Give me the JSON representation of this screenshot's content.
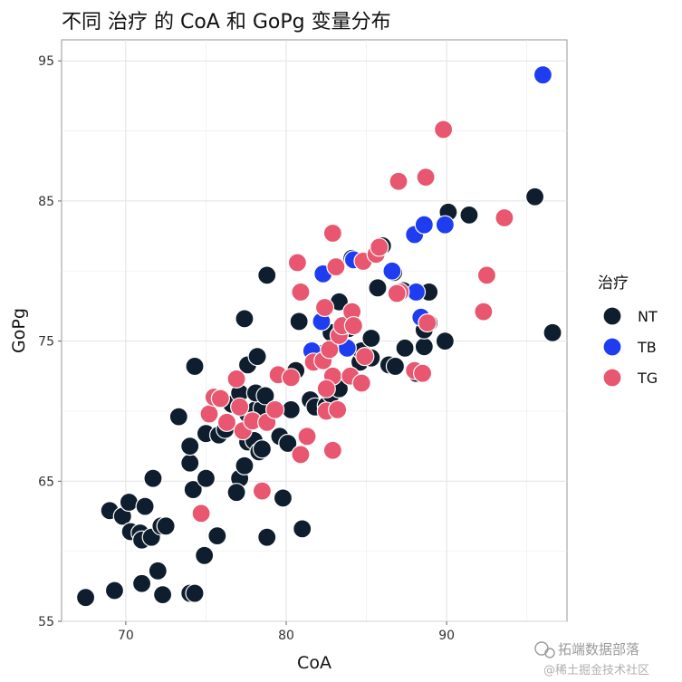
{
  "chart_data": {
    "type": "scatter",
    "title": "不同 治疗 的 CoA 和 GoPg 变量分布",
    "xlabel": "CoA",
    "ylabel": "GoPg",
    "xlim": [
      66,
      97.5
    ],
    "ylim": [
      55,
      96.5
    ],
    "x_ticks": [
      70,
      80,
      90
    ],
    "y_ticks": [
      55,
      65,
      75,
      85,
      95
    ],
    "grid": true,
    "legend_title": "治疗",
    "legend_position": "right",
    "series": [
      {
        "name": "NT",
        "color": "#0f1e2e",
        "points": [
          [
            67.5,
            56.7
          ],
          [
            69.3,
            57.2
          ],
          [
            71,
            57.7
          ],
          [
            72,
            58.6
          ],
          [
            72.3,
            56.9
          ],
          [
            74,
            57
          ],
          [
            74.3,
            57
          ],
          [
            74.9,
            59.7
          ],
          [
            75.7,
            61.1
          ],
          [
            78.8,
            61
          ],
          [
            81,
            61.6
          ],
          [
            69,
            62.9
          ],
          [
            69.8,
            62.5
          ],
          [
            70.3,
            61.4
          ],
          [
            70.2,
            63.5
          ],
          [
            70.9,
            61.3
          ],
          [
            71,
            60.8
          ],
          [
            71.2,
            63.2
          ],
          [
            71.6,
            61
          ],
          [
            72.2,
            61.8
          ],
          [
            71.7,
            65.2
          ],
          [
            72.5,
            61.8
          ],
          [
            74.2,
            64.4
          ],
          [
            74,
            66.3
          ],
          [
            75,
            65.2
          ],
          [
            77.1,
            65.2
          ],
          [
            77.4,
            66.1
          ],
          [
            76.9,
            64.2
          ],
          [
            79.8,
            63.8
          ],
          [
            73.3,
            69.6
          ],
          [
            74,
            67.5
          ],
          [
            75,
            68.4
          ],
          [
            75.8,
            68.3
          ],
          [
            76.2,
            68.7
          ],
          [
            77.6,
            67.8
          ],
          [
            78,
            67.9
          ],
          [
            78.3,
            67.1
          ],
          [
            79.6,
            68.2
          ],
          [
            80.1,
            67.7
          ],
          [
            78.5,
            67.3
          ],
          [
            74.3,
            73.2
          ],
          [
            76.6,
            70.5
          ],
          [
            77.1,
            71.3
          ],
          [
            77.6,
            69.8
          ],
          [
            78.1,
            70.1
          ],
          [
            78.5,
            70.2
          ],
          [
            77.6,
            73.3
          ],
          [
            78.2,
            73.9
          ],
          [
            78.1,
            71.3
          ],
          [
            78.7,
            71.1
          ],
          [
            80.3,
            70.1
          ],
          [
            81.5,
            70.8
          ],
          [
            81.8,
            70.3
          ],
          [
            82.5,
            70.4
          ],
          [
            82.8,
            71.2
          ],
          [
            83.3,
            71.6
          ],
          [
            80.6,
            72.9
          ],
          [
            82.1,
            74.1
          ],
          [
            83.5,
            74.7
          ],
          [
            84.6,
            73.5
          ],
          [
            85.3,
            73.8
          ],
          [
            86.4,
            73.3
          ],
          [
            86.8,
            73.2
          ],
          [
            82.8,
            75.6
          ],
          [
            83.9,
            75.9
          ],
          [
            84.7,
            74.3
          ],
          [
            85.3,
            75.2
          ],
          [
            87.4,
            74.5
          ],
          [
            88.6,
            74.6
          ],
          [
            89.9,
            75
          ],
          [
            88.9,
            76.3
          ],
          [
            88.6,
            75.8
          ],
          [
            80.8,
            76.4
          ],
          [
            77.4,
            76.6
          ],
          [
            83.3,
            77.8
          ],
          [
            84.1,
            80.9
          ],
          [
            85.7,
            78.8
          ],
          [
            86,
            81.8
          ],
          [
            86.7,
            79.9
          ],
          [
            87.3,
            78.6
          ],
          [
            88.9,
            78.5
          ],
          [
            78.8,
            79.7
          ],
          [
            90.1,
            84.2
          ],
          [
            91.4,
            84
          ],
          [
            95.5,
            85.3
          ],
          [
            96.6,
            75.6
          ],
          [
            88.1,
            72.7
          ]
        ]
      },
      {
        "name": "TB",
        "color": "#1f3df0",
        "points": [
          [
            81.6,
            74.3
          ],
          [
            83.8,
            74.5
          ],
          [
            82.2,
            76.4
          ],
          [
            82.3,
            79.8
          ],
          [
            84.2,
            80.8
          ],
          [
            86.6,
            80
          ],
          [
            88.1,
            78.5
          ],
          [
            88.4,
            76.7
          ],
          [
            88,
            82.6
          ],
          [
            88.6,
            83.3
          ],
          [
            89.9,
            83.3
          ],
          [
            96,
            94
          ]
        ]
      },
      {
        "name": "TG",
        "color": "#e8566f",
        "points": [
          [
            74.7,
            62.7
          ],
          [
            78.5,
            64.3
          ],
          [
            75.2,
            69.8
          ],
          [
            75.5,
            71
          ],
          [
            75.9,
            70.9
          ],
          [
            76.3,
            69.2
          ],
          [
            77.1,
            70.3
          ],
          [
            77.3,
            68.6
          ],
          [
            77.9,
            69.3
          ],
          [
            78.8,
            69.2
          ],
          [
            79.3,
            70.1
          ],
          [
            76.9,
            72.3
          ],
          [
            79.5,
            72.6
          ],
          [
            80.3,
            72.4
          ],
          [
            81.3,
            68.2
          ],
          [
            80.9,
            66.9
          ],
          [
            82.9,
            67.2
          ],
          [
            81.7,
            73.5
          ],
          [
            82.3,
            73.6
          ],
          [
            82.7,
            74.4
          ],
          [
            82.9,
            72.5
          ],
          [
            82.5,
            71.6
          ],
          [
            82.5,
            70
          ],
          [
            83.2,
            70.1
          ],
          [
            84,
            72.5
          ],
          [
            84.7,
            72
          ],
          [
            84.9,
            73.9
          ],
          [
            83.3,
            75.4
          ],
          [
            83.5,
            76.1
          ],
          [
            84.1,
            77.1
          ],
          [
            84.2,
            76.1
          ],
          [
            82.4,
            77.4
          ],
          [
            80.7,
            80.6
          ],
          [
            80.9,
            78.5
          ],
          [
            83.1,
            80.3
          ],
          [
            82.9,
            82.7
          ],
          [
            84.8,
            80.7
          ],
          [
            85.6,
            81.2
          ],
          [
            85.8,
            81.7
          ],
          [
            87.1,
            78.5
          ],
          [
            86.9,
            78.4
          ],
          [
            87,
            86.4
          ],
          [
            88.7,
            86.7
          ],
          [
            89.8,
            90.1
          ],
          [
            92.3,
            77.1
          ],
          [
            92.5,
            79.7
          ],
          [
            93.6,
            83.8
          ],
          [
            88,
            72.9
          ],
          [
            88.5,
            72.7
          ],
          [
            88.8,
            76.3
          ]
        ]
      }
    ]
  },
  "watermark": {
    "line1": "拓端数据部落",
    "line2": "@稀土掘金技术社区"
  }
}
